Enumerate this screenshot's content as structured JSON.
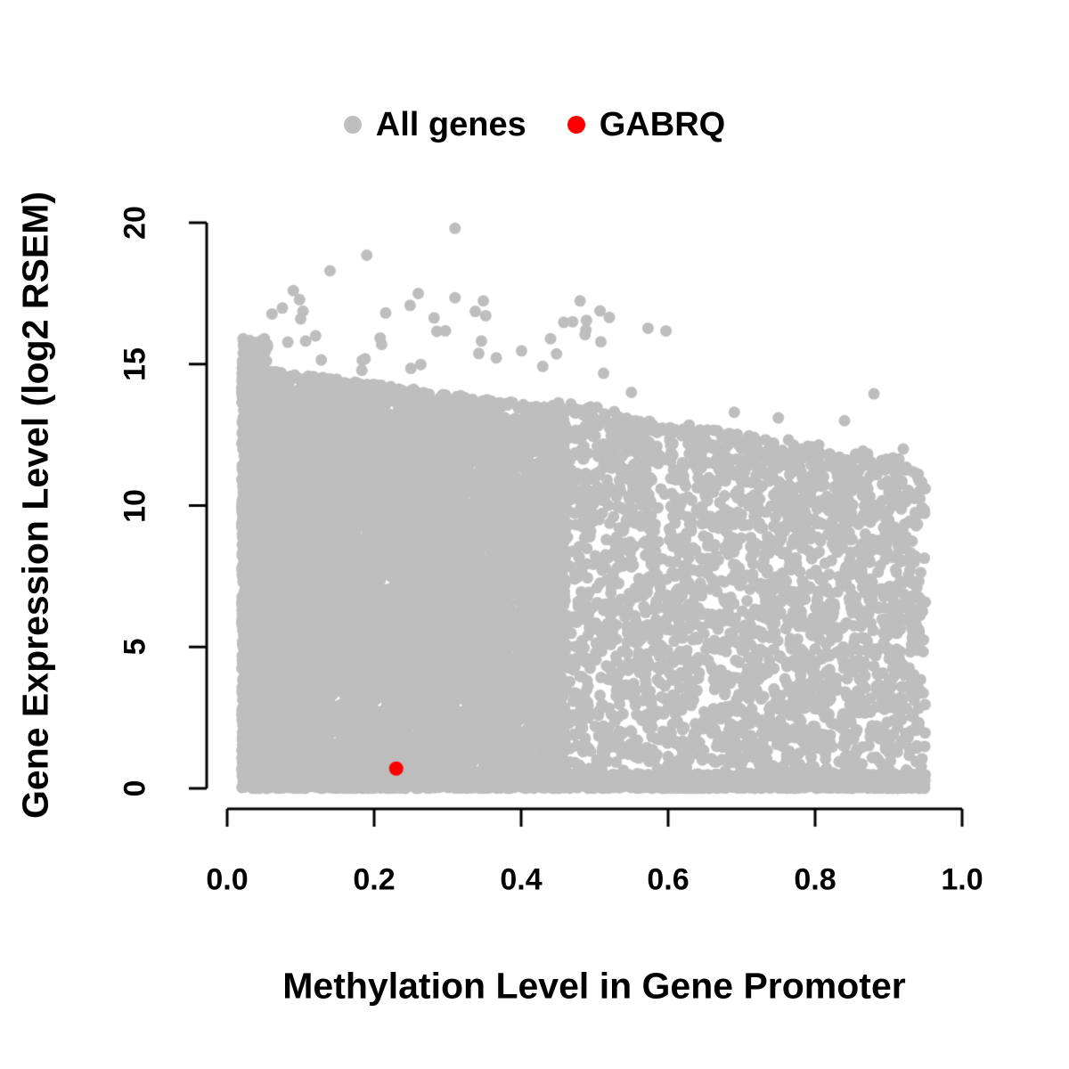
{
  "figure": {
    "background": "#ffffff",
    "text_color": "#000000",
    "axis_color": "#000000"
  },
  "chart_data": {
    "type": "scatter",
    "title": "",
    "xlabel": "Methylation Level in Gene Promoter",
    "ylabel": "Gene Expression Level (log2 RSEM)",
    "xlim": [
      0.0,
      1.0
    ],
    "ylim": [
      0,
      20
    ],
    "grid": false,
    "legend_position": "top-center",
    "x_ticks": [
      {
        "label": "0.0",
        "value": 0.0
      },
      {
        "label": "0.2",
        "value": 0.2
      },
      {
        "label": "0.4",
        "value": 0.4
      },
      {
        "label": "0.6",
        "value": 0.6
      },
      {
        "label": "0.8",
        "value": 0.8
      },
      {
        "label": "1.0",
        "value": 1.0
      }
    ],
    "y_ticks": [
      {
        "label": "0",
        "value": 0
      },
      {
        "label": "5",
        "value": 5
      },
      {
        "label": "10",
        "value": 10
      },
      {
        "label": "15",
        "value": 15
      },
      {
        "label": "20",
        "value": 20
      }
    ],
    "legend": [
      {
        "label": "All genes",
        "color": "#bebebe"
      },
      {
        "label": "GABRQ",
        "color": "#ff0000"
      }
    ],
    "series": [
      {
        "name": "All genes",
        "type": "generated-cloud",
        "color": "#bebebe",
        "marker_radius": 6.5,
        "seed": 20240501,
        "blobs": [
          {
            "n": 9000,
            "x": [
              0.02,
              0.46
            ],
            "x_skew": 1.15,
            "y_base": 0,
            "y_env_intercept": 15.0,
            "y_env_slope": -3.5
          },
          {
            "n": 2600,
            "x": [
              0.44,
              0.95
            ],
            "x_skew": 1.0,
            "y_base": 0,
            "y_env_intercept": 16.0,
            "y_env_slope": -5.0
          },
          {
            "n": 2500,
            "x": [
              0.03,
              0.95
            ],
            "x_skew": 1.0,
            "y_base": 0,
            "y_env_intercept": 0.5,
            "y_env_slope": 0
          },
          {
            "n": 1200,
            "x": [
              0.02,
              0.055
            ],
            "x_skew": 1.0,
            "y_base": 0,
            "y_env_intercept": 15.9,
            "y_env_slope": 0
          },
          {
            "n": 40,
            "x": [
              0.05,
              0.6
            ],
            "x_skew": 1.0,
            "y_base": 14.6,
            "y_env_intercept": 17.3,
            "y_env_slope": 0
          },
          {
            "n": 130,
            "x": [
              0.45,
              0.93
            ],
            "x_skew": 1.0,
            "y_base": 11.3,
            "y_env_intercept": 15.0,
            "y_env_slope": -3.5
          }
        ],
        "extra_points": [
          [
            0.31,
            19.8
          ],
          [
            0.19,
            18.85
          ],
          [
            0.14,
            18.3
          ],
          [
            0.09,
            17.6
          ],
          [
            0.26,
            17.5
          ],
          [
            0.31,
            17.35
          ],
          [
            0.1,
            16.6
          ],
          [
            0.52,
            16.65
          ],
          [
            0.47,
            16.5
          ],
          [
            0.44,
            15.9
          ],
          [
            0.55,
            14.0
          ],
          [
            0.69,
            13.3
          ],
          [
            0.75,
            13.1
          ],
          [
            0.84,
            13.0
          ],
          [
            0.88,
            13.95
          ],
          [
            0.92,
            12.0
          ]
        ]
      },
      {
        "name": "GABRQ",
        "type": "points",
        "color": "#ff0000",
        "marker_radius": 8,
        "points": [
          [
            0.23,
            0.7
          ]
        ]
      }
    ]
  }
}
